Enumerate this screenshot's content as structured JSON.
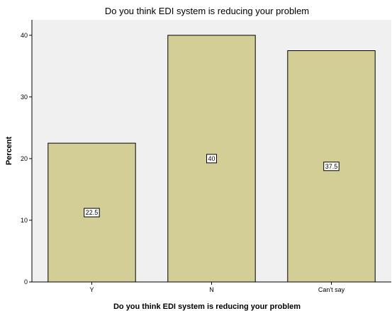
{
  "chart_data": {
    "type": "bar",
    "title": "Do you think EDI system is reducing your problem",
    "xlabel": "Do you think EDI system is reducing your problem",
    "ylabel": "Percent",
    "categories": [
      "Y",
      "N",
      "Can't say"
    ],
    "values": [
      22.5,
      40,
      37.5
    ],
    "data_labels": [
      "22.5",
      "40",
      "37.5"
    ],
    "ylim": [
      0,
      42.5
    ],
    "yticks": [
      0,
      10,
      20,
      30,
      40
    ],
    "ytick_labels": [
      "0",
      "10",
      "20",
      "30",
      "40"
    ],
    "grid": false,
    "legend": "none",
    "colors": {
      "bar_fill": "#d3cd96",
      "bar_stroke": "#000000",
      "plot_background": "#f0f0f0",
      "axis": "#000000"
    }
  }
}
